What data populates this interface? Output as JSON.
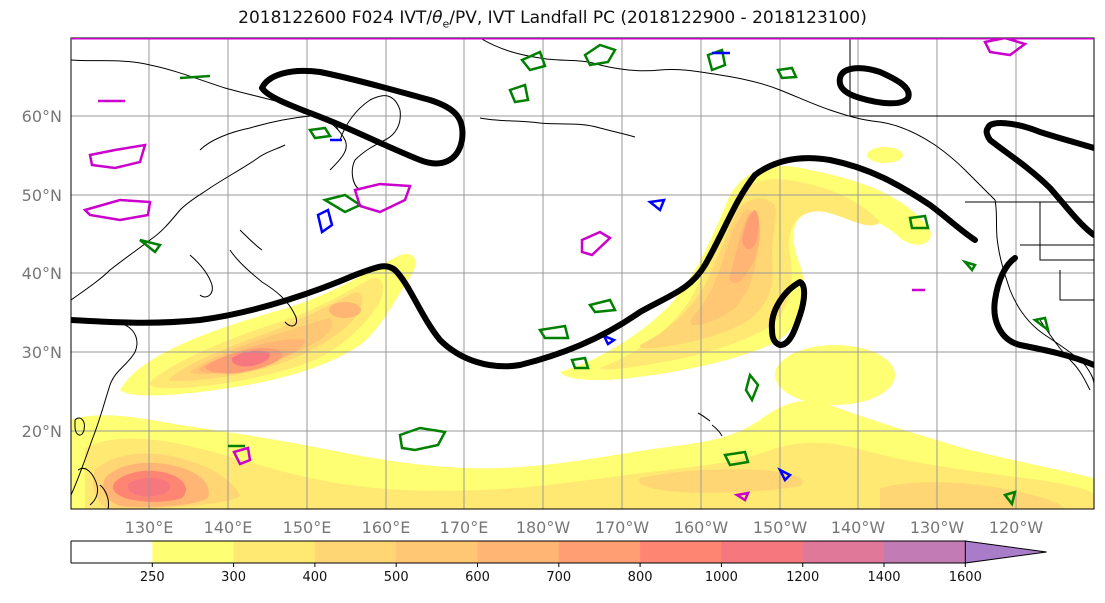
{
  "chart_data": {
    "type": "heatmap",
    "title_prefix": "2018122600 F024 IVT/",
    "title_theta": "θ",
    "title_sub": "e",
    "title_suffix": "/PV, IVT Landfall PC (2018122900 - 2018123100)",
    "map_projection": "PlateCarree (Pacific-centred)",
    "lon_range": [
      120,
      250
    ],
    "lat_range": [
      10,
      70
    ],
    "grid": true,
    "x_ticks": [
      {
        "lon": 130,
        "label": "130°E"
      },
      {
        "lon": 140,
        "label": "140°E"
      },
      {
        "lon": 150,
        "label": "150°E"
      },
      {
        "lon": 160,
        "label": "160°E"
      },
      {
        "lon": 170,
        "label": "170°E"
      },
      {
        "lon": 180,
        "label": "180°W"
      },
      {
        "lon": 190,
        "label": "170°W"
      },
      {
        "lon": 200,
        "label": "160°W"
      },
      {
        "lon": 210,
        "label": "150°W"
      },
      {
        "lon": 220,
        "label": "140°W"
      },
      {
        "lon": 230,
        "label": "130°W"
      },
      {
        "lon": 240,
        "label": "120°W"
      }
    ],
    "y_ticks": [
      {
        "lat": 20,
        "label": "20°N"
      },
      {
        "lat": 30,
        "label": "30°N"
      },
      {
        "lat": 40,
        "label": "40°N"
      },
      {
        "lat": 50,
        "label": "50°N"
      },
      {
        "lat": 60,
        "label": "60°N"
      }
    ],
    "colorbar": {
      "orientation": "horizontal",
      "extend": "max",
      "levels": [
        0,
        250,
        300,
        400,
        500,
        600,
        700,
        800,
        1000,
        1200,
        1400,
        1600
      ],
      "tick_labels": [
        "250",
        "300",
        "400",
        "500",
        "600",
        "700",
        "800",
        "1000",
        "1200",
        "1400",
        "1600"
      ],
      "colors": [
        "#ffffff",
        "#ffff73",
        "#ffe972",
        "#ffd673",
        "#ffc673",
        "#ffb573",
        "#ff9e73",
        "#ff8573",
        "#f7777f",
        "#e0789a",
        "#c37bb6",
        "#a97cc9"
      ]
    },
    "ivt_plumes": [
      {
        "name": "pacific-mid-lat",
        "points": [
          {
            "lon": 128,
            "lat": 27.5,
            "ivt": 250
          },
          {
            "lon": 136,
            "lat": 29,
            "ivt": 500
          },
          {
            "lon": 141,
            "lat": 29,
            "ivt": 1000
          },
          {
            "lon": 147,
            "lat": 31,
            "ivt": 600
          },
          {
            "lon": 154,
            "lat": 35,
            "ivt": 500
          },
          {
            "lon": 160,
            "lat": 38,
            "ivt": 300
          }
        ]
      },
      {
        "name": "central-pacific-ridge",
        "points": [
          {
            "lon": 196,
            "lat": 32,
            "ivt": 300
          },
          {
            "lon": 201,
            "lat": 36,
            "ivt": 400
          },
          {
            "lon": 205,
            "lat": 40,
            "ivt": 500
          },
          {
            "lon": 208,
            "lat": 45,
            "ivt": 600
          },
          {
            "lon": 211,
            "lat": 50,
            "ivt": 300
          },
          {
            "lon": 222,
            "lat": 54,
            "ivt": 250
          }
        ]
      },
      {
        "name": "tropical-west",
        "points": [
          {
            "lon": 125,
            "lat": 14,
            "ivt": 800
          },
          {
            "lon": 131,
            "lat": 13,
            "ivt": 1000
          },
          {
            "lon": 138,
            "lat": 14,
            "ivt": 500
          },
          {
            "lon": 150,
            "lat": 13,
            "ivt": 300
          }
        ]
      },
      {
        "name": "tropical-east",
        "points": [
          {
            "lon": 190,
            "lat": 13,
            "ivt": 300
          },
          {
            "lon": 205,
            "lat": 14,
            "ivt": 400
          },
          {
            "lon": 220,
            "lat": 14,
            "ivt": 300
          },
          {
            "lon": 240,
            "lat": 13,
            "ivt": 400
          }
        ]
      }
    ],
    "pc_contour_color": "#000000",
    "pv_contour_colors": {
      "green": "#008000",
      "magenta": "#cc00cc",
      "blue": "#0000ff"
    }
  }
}
